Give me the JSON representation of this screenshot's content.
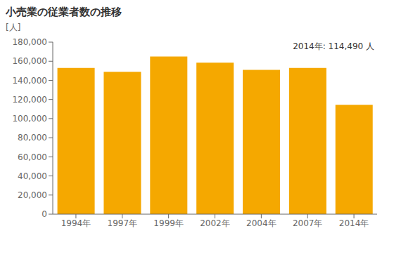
{
  "chart_data": {
    "type": "bar",
    "title": "小売業の従業者数の推移",
    "ylabel": "[人]",
    "annotation": "2014年: 114,490 人",
    "categories": [
      "1994年",
      "1997年",
      "1999年",
      "2002年",
      "2004年",
      "2007年",
      "2014年"
    ],
    "values": [
      153000,
      149000,
      165000,
      158500,
      151000,
      153000,
      114490
    ],
    "color": "#F5A800",
    "ylim": [
      0,
      180000
    ],
    "yticks": [
      0,
      {
        "value": 20000,
        "label": "20,000"
      },
      {
        "value": 40000,
        "label": "40,000"
      },
      {
        "value": 60000,
        "label": "60,000"
      },
      {
        "value": 80000,
        "label": "80,000"
      },
      {
        "value": 100000,
        "label": "100,000"
      },
      {
        "value": 120000,
        "label": "120,000"
      },
      {
        "value": 140000,
        "label": "140,000"
      },
      {
        "value": 160000,
        "label": "160,000"
      },
      {
        "value": 180000,
        "label": "180,000"
      }
    ],
    "grid": false
  }
}
